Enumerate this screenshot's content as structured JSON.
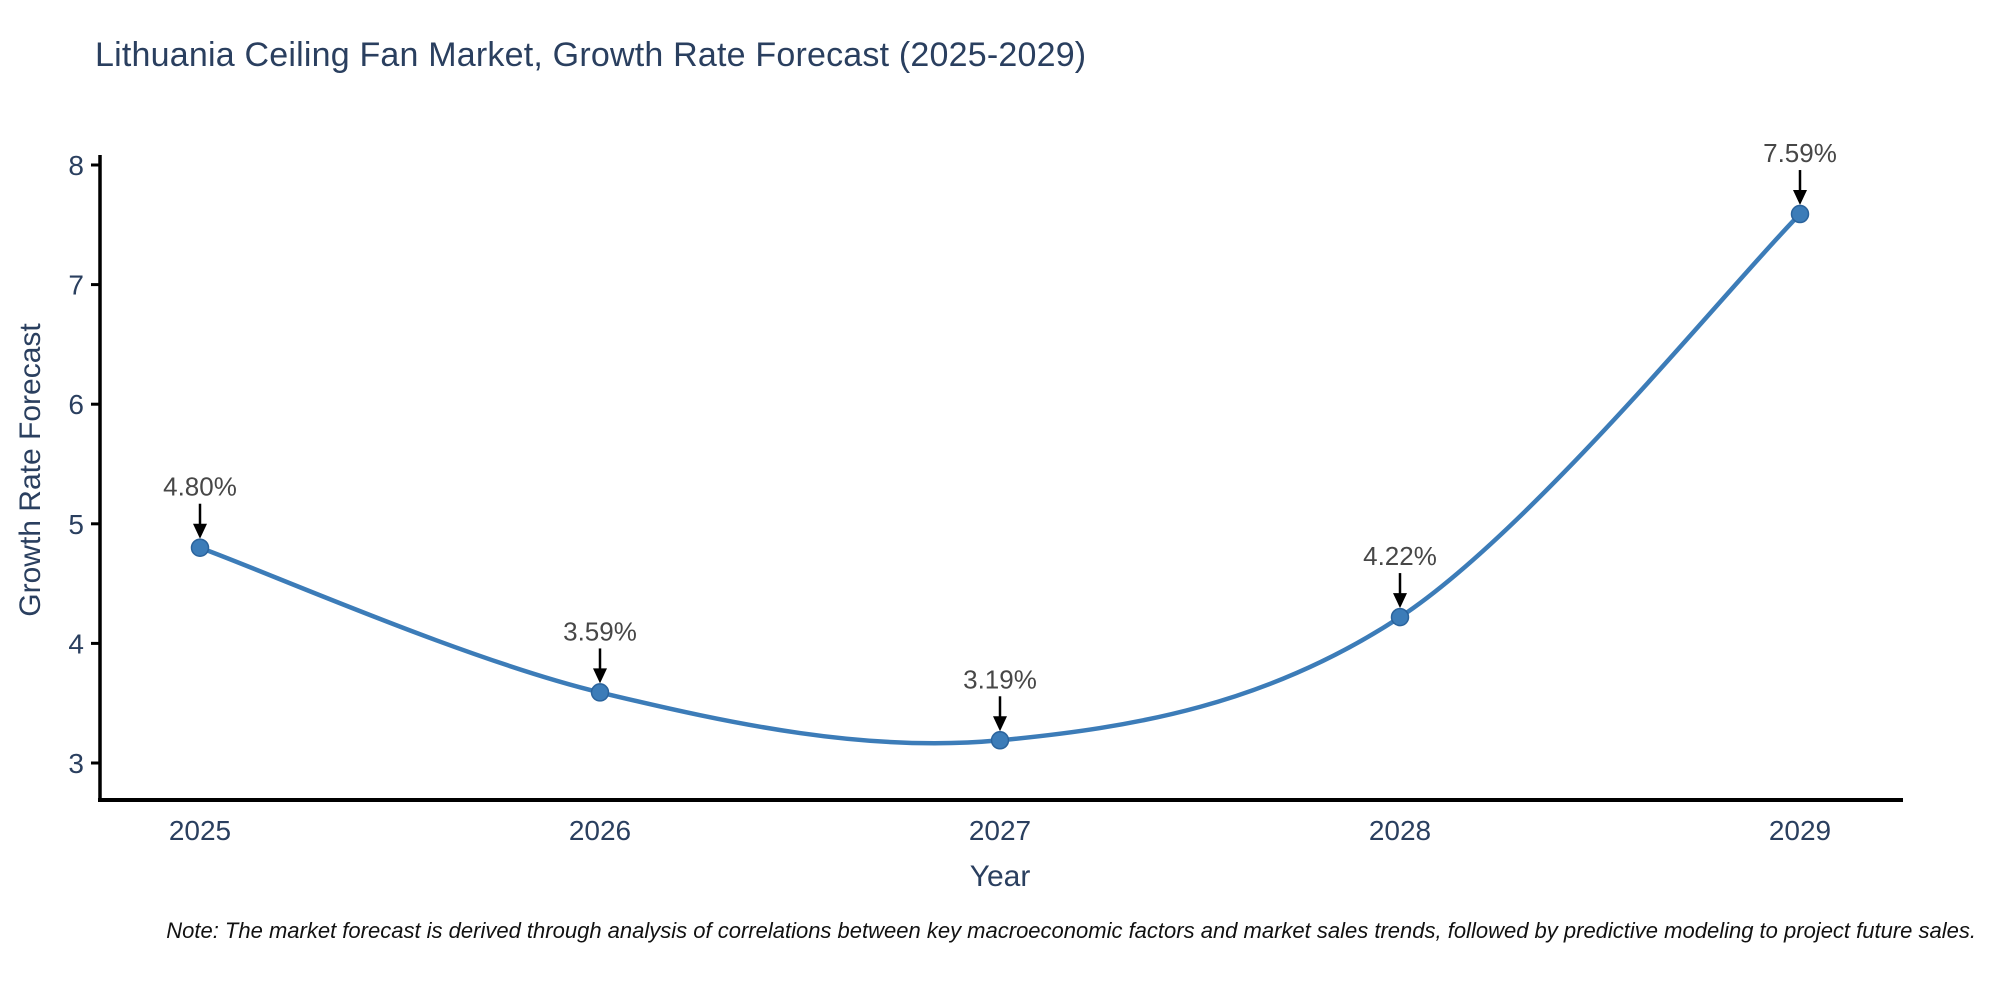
{
  "page": {
    "note": "Note: The market forecast is derived through analysis of correlations between key macroeconomic factors and market sales trends, followed by predictive modeling to project future sales."
  },
  "chart_data": {
    "type": "line",
    "title": "Lithuania Ceiling Fan Market, Growth Rate Forecast (2025-2029)",
    "xlabel": "Year",
    "ylabel": "Growth Rate Forecast",
    "x": [
      "2025",
      "2026",
      "2027",
      "2028",
      "2029"
    ],
    "series": [
      {
        "name": "Growth Rate Forecast",
        "values": [
          4.8,
          3.59,
          3.19,
          4.22,
          7.59
        ]
      }
    ],
    "point_labels": [
      "4.80%",
      "3.59%",
      "3.19%",
      "4.22%",
      "7.59%"
    ],
    "ylim": [
      3,
      8
    ],
    "yticks": [
      3,
      4,
      5,
      6,
      7,
      8
    ],
    "grid": false,
    "legend": "none",
    "smooth": true,
    "colors": {
      "line": "#3c7cb8",
      "marker": "#3c7cb8",
      "marker_edge": "#2a639c",
      "axis": "#000000",
      "text": "#2a3f5f",
      "annotation_text": "#474747",
      "arrow": "#000000",
      "background": "#ffffff"
    }
  }
}
